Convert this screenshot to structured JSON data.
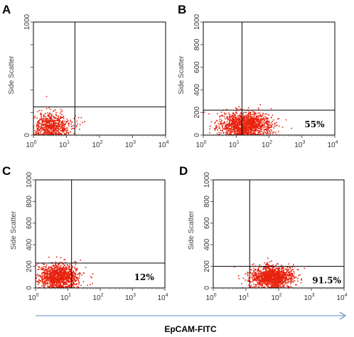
{
  "figure": {
    "x_axis_title": "EpCAM-FITC",
    "arrow_color": "#5b8fc7",
    "point_color": "#e8220e"
  },
  "chart_data": [
    {
      "panel": "A",
      "type": "scatter",
      "ylabel": "Side Scatter",
      "xscale": "log",
      "xlim": [
        1,
        10000
      ],
      "ylim": [
        0,
        1000
      ],
      "xticks": [
        "10^0",
        "10^1",
        "10^2",
        "10^3",
        "10^4"
      ],
      "yticks": [
        0,
        200,
        400,
        600,
        800,
        1000
      ],
      "yticks_printed": [
        "0",
        "1000"
      ],
      "gate": {
        "x": 18,
        "y": 250
      },
      "percent_label": "",
      "population": {
        "x_center": 3.5,
        "x_spread": 0.28,
        "y_center": 85,
        "y_spread": 55,
        "n": 650
      }
    },
    {
      "panel": "B",
      "type": "scatter",
      "ylabel": "Side Scatter",
      "xscale": "log",
      "xlim": [
        1,
        10000
      ],
      "ylim": [
        0,
        1000
      ],
      "xticks": [
        "10^0",
        "10^1",
        "10^2",
        "10^3",
        "10^4"
      ],
      "yticks": [
        0,
        200,
        400,
        600,
        800,
        1000
      ],
      "yticks_printed": [
        "0",
        "200",
        "400",
        "600",
        "800",
        "1000"
      ],
      "gate": {
        "x": 15,
        "y": 220
      },
      "percent_label": "55%",
      "population": {
        "x_center": 18,
        "x_spread": 0.38,
        "y_center": 95,
        "y_spread": 55,
        "n": 1300
      }
    },
    {
      "panel": "C",
      "type": "scatter",
      "ylabel": "Side Scatter",
      "xscale": "log",
      "xlim": [
        1,
        10000
      ],
      "ylim": [
        0,
        1000
      ],
      "xticks": [
        "10^0",
        "10^1",
        "10^2",
        "10^3",
        "10^4"
      ],
      "yticks": [
        0,
        200,
        400,
        600,
        800,
        1000
      ],
      "yticks_printed": [
        "0",
        "200",
        "400",
        "600",
        "800",
        "1000"
      ],
      "gate": {
        "x": 13,
        "y": 230
      },
      "percent_label": "12%",
      "population": {
        "x_center": 5,
        "x_spread": 0.3,
        "y_center": 110,
        "y_spread": 55,
        "n": 1100
      }
    },
    {
      "panel": "D",
      "type": "scatter",
      "ylabel": "Side Scatter",
      "xscale": "log",
      "xlim": [
        1,
        10000
      ],
      "ylim": [
        0,
        1000
      ],
      "xticks": [
        "10^0",
        "10^1",
        "10^2",
        "10^3",
        "10^4"
      ],
      "yticks": [
        0,
        200,
        400,
        600,
        800,
        1000
      ],
      "yticks_printed": [
        "0",
        "200",
        "400",
        "600",
        "800",
        "1000"
      ],
      "gate": {
        "x": 13,
        "y": 200
      },
      "percent_label": "91.5%",
      "population": {
        "x_center": 60,
        "x_spread": 0.32,
        "y_center": 105,
        "y_spread": 50,
        "n": 1300
      }
    }
  ]
}
